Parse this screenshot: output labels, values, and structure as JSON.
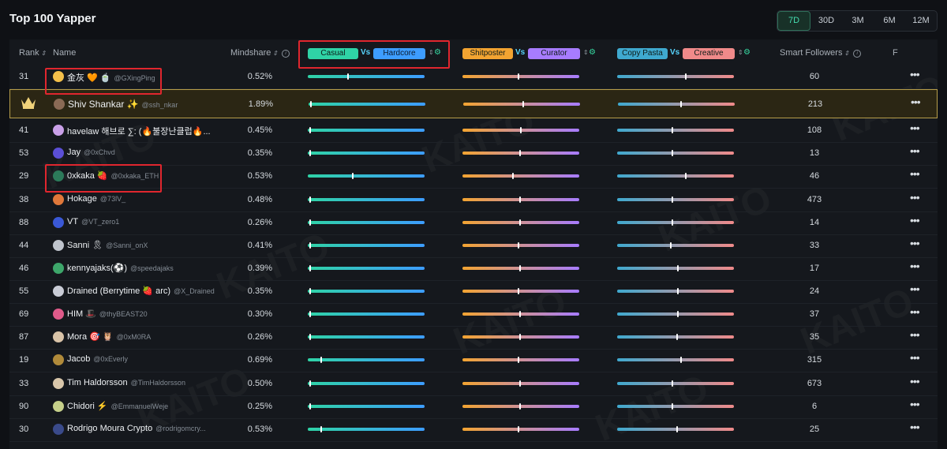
{
  "title": "Top 100 Yapper",
  "ranges": [
    "7D",
    "30D",
    "3M",
    "6M",
    "12M"
  ],
  "active_range": "7D",
  "watermark": "KAITO",
  "headers": {
    "rank": "Rank",
    "name": "Name",
    "mindshare": "Mindshare",
    "casual": "Casual",
    "hardcore": "Hardcore",
    "shitposter": "Shitposter",
    "curator": "Curator",
    "copy_pasta": "Copy Pasta",
    "creative": "Creative",
    "vs": "Vs",
    "smart_followers": "Smart Followers",
    "more": "F"
  },
  "colors": {
    "casual": "#2fd3a6",
    "hardcore": "#3d9dff",
    "shitposter": "#f3a431",
    "curator": "#a77cff",
    "copy_pasta": "#3fa9cf",
    "creative": "#f08a8a",
    "highlight": "#e0262e"
  },
  "rows": [
    {
      "rank": "31",
      "name": "金灰 🧡 🍵",
      "handle": "@GXingPing",
      "mindshare": "0.52%",
      "f1": 0.34,
      "f2": 0.48,
      "f3": 0.59,
      "followers": "60",
      "avatar": "#f3c04a"
    },
    {
      "rank": "",
      "crown": true,
      "name": "Shiv Shankar ✨",
      "handle": "@ssh_nkar",
      "mindshare": "1.89%",
      "f1": 0.01,
      "f2": 0.51,
      "f3": 0.54,
      "followers": "213",
      "avatar": "#8a6a55"
    },
    {
      "rank": "41",
      "name": "havelaw 해브로 ∑: (🔥불장난클럽🔥...",
      "handle": "",
      "mindshare": "0.45%",
      "f1": 0.01,
      "f2": 0.5,
      "f3": 0.47,
      "followers": "108",
      "avatar": "#c9a0e8"
    },
    {
      "rank": "53",
      "name": "Jay",
      "handle": "@0xChvd",
      "mindshare": "0.35%",
      "f1": 0.01,
      "f2": 0.49,
      "f3": 0.47,
      "followers": "13",
      "avatar": "#5b4fd6"
    },
    {
      "rank": "29",
      "name": "0xkaka 🍓",
      "handle": "@0xkaka_ETH",
      "mindshare": "0.53%",
      "f1": 0.38,
      "f2": 0.43,
      "f3": 0.59,
      "followers": "46",
      "avatar": "#2c7a5a"
    },
    {
      "rank": "38",
      "name": "Hokage",
      "handle": "@73lV_",
      "mindshare": "0.48%",
      "f1": 0.01,
      "f2": 0.49,
      "f3": 0.47,
      "followers": "473",
      "avatar": "#e0783a"
    },
    {
      "rank": "88",
      "name": "VT",
      "handle": "@VT_zero1",
      "mindshare": "0.26%",
      "f1": 0.01,
      "f2": 0.49,
      "f3": 0.47,
      "followers": "14",
      "avatar": "#3a58d6"
    },
    {
      "rank": "44",
      "name": "Sanni 🎗",
      "handle": "@Sanni_onX",
      "mindshare": "0.41%",
      "f1": 0.01,
      "f2": 0.48,
      "f3": 0.46,
      "followers": "33",
      "avatar": "#bfc4cc"
    },
    {
      "rank": "46",
      "name": "kennyajaks(⚽)",
      "handle": "@speedajaks",
      "mindshare": "0.39%",
      "f1": 0.01,
      "f2": 0.49,
      "f3": 0.52,
      "followers": "17",
      "avatar": "#3da66a"
    },
    {
      "rank": "55",
      "name": "Drained (Berrytime 🍓 arc)",
      "handle": "@X_Drained",
      "mindshare": "0.35%",
      "f1": 0.01,
      "f2": 0.48,
      "f3": 0.52,
      "followers": "24",
      "avatar": "#c9ccd6"
    },
    {
      "rank": "69",
      "name": "HIM 🎩",
      "handle": "@thyBEAST20",
      "mindshare": "0.30%",
      "f1": 0.01,
      "f2": 0.49,
      "f3": 0.52,
      "followers": "37",
      "avatar": "#e05a8a"
    },
    {
      "rank": "87",
      "name": "Mora 🎯 🦉",
      "handle": "@0xM0RA",
      "mindshare": "0.26%",
      "f1": 0.01,
      "f2": 0.49,
      "f3": 0.51,
      "followers": "35",
      "avatar": "#d9c3a8"
    },
    {
      "rank": "19",
      "name": "Jacob",
      "handle": "@0xEverly",
      "mindshare": "0.69%",
      "f1": 0.11,
      "f2": 0.48,
      "f3": 0.55,
      "followers": "315",
      "avatar": "#b08a3a"
    },
    {
      "rank": "33",
      "name": "Tim Haldorsson",
      "handle": "@TimHaldorsson",
      "mindshare": "0.50%",
      "f1": 0.01,
      "f2": 0.49,
      "f3": 0.47,
      "followers": "673",
      "avatar": "#d8c6aa"
    },
    {
      "rank": "90",
      "name": "Chidori ⚡",
      "handle": "@EmmanuelWeje",
      "mindshare": "0.25%",
      "f1": 0.01,
      "f2": 0.49,
      "f3": 0.47,
      "followers": "6",
      "avatar": "#c6d08a"
    },
    {
      "rank": "30",
      "name": "Rodrigo Moura Crypto",
      "handle": "@rodrigomcry...",
      "mindshare": "0.53%",
      "f1": 0.11,
      "f2": 0.48,
      "f3": 0.51,
      "followers": "25",
      "avatar": "#3a4a8a"
    }
  ]
}
